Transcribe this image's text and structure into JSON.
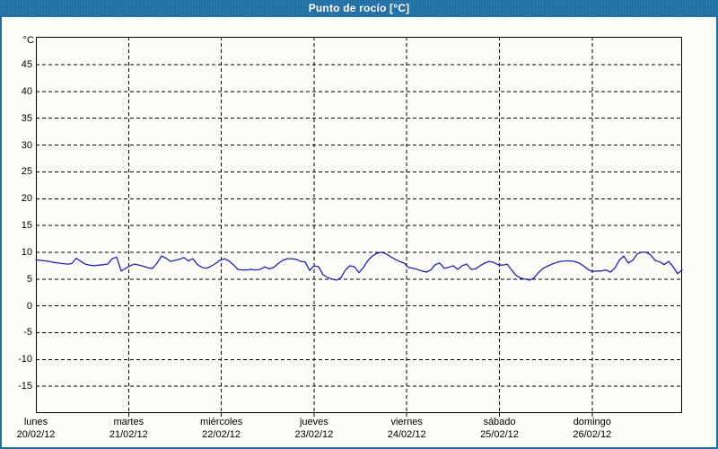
{
  "window": {
    "title": "Punto de rocío [°C]"
  },
  "colors": {
    "titlebar_bg": "#1e6da3",
    "titlebar_text": "#ffffff",
    "outer_border": "#1e6da3",
    "background": "#fcfdf8",
    "axis": "#000000",
    "gridline": "#000000",
    "line": "#2222b2"
  },
  "chart_data": {
    "type": "line",
    "title": "Punto de rocío [°C]",
    "ylabel": "°C",
    "ylim": [
      -20,
      50.2
    ],
    "yticks": [
      45,
      40,
      35,
      30,
      25,
      20,
      15,
      10,
      5,
      0,
      -5,
      -10,
      -15
    ],
    "grid": "dashed",
    "legend": "none",
    "x_span_days": 6.97,
    "x_days": [
      {
        "name": "lunes",
        "date": "20/02/12"
      },
      {
        "name": "martes",
        "date": "21/02/12"
      },
      {
        "name": "miércoles",
        "date": "22/02/12"
      },
      {
        "name": "jueves",
        "date": "23/02/12"
      },
      {
        "name": "viernes",
        "date": "24/02/12"
      },
      {
        "name": "sábado",
        "date": "25/02/12"
      },
      {
        "name": "domingo",
        "date": "26/02/12"
      }
    ],
    "series": [
      {
        "name": "Punto de rocío",
        "unit": "°C",
        "sampling": "uniform across x axis",
        "values": [
          8.6,
          8.5,
          8.4,
          8.3,
          8.1,
          8.0,
          7.9,
          7.8,
          7.9,
          8.9,
          8.3,
          7.8,
          7.6,
          7.5,
          7.6,
          7.7,
          7.8,
          8.8,
          9.1,
          6.5,
          7.0,
          7.5,
          7.8,
          7.6,
          7.4,
          7.1,
          7.0,
          8.0,
          9.3,
          8.9,
          8.3,
          8.5,
          8.7,
          9.0,
          8.4,
          8.8,
          7.7,
          7.2,
          7.0,
          7.4,
          7.9,
          8.5,
          8.8,
          8.4,
          7.7,
          6.8,
          6.7,
          6.7,
          6.8,
          6.7,
          6.8,
          7.3,
          6.9,
          7.2,
          7.9,
          8.5,
          8.8,
          8.8,
          8.7,
          8.3,
          8.2,
          6.6,
          7.5,
          7.3,
          5.8,
          5.3,
          5.0,
          4.8,
          5.3,
          6.7,
          7.5,
          7.3,
          6.2,
          7.2,
          8.5,
          9.3,
          9.8,
          10.0,
          9.7,
          9.2,
          8.7,
          8.3,
          8.0,
          7.2,
          7.0,
          6.8,
          6.5,
          6.3,
          6.7,
          7.7,
          8.0,
          7.0,
          7.2,
          7.5,
          6.8,
          7.5,
          7.8,
          6.8,
          6.9,
          7.5,
          8.0,
          8.3,
          8.1,
          7.7,
          7.6,
          7.8,
          6.7,
          5.7,
          5.2,
          5.0,
          4.8,
          5.2,
          6.2,
          7.0,
          7.4,
          7.8,
          8.1,
          8.3,
          8.4,
          8.4,
          8.3,
          8.0,
          7.5,
          6.8,
          6.4,
          6.5,
          6.5,
          6.7,
          6.3,
          7.0,
          8.5,
          9.3,
          8.0,
          8.5,
          9.7,
          10.0,
          10.0,
          9.5,
          8.5,
          8.2,
          7.7,
          8.3,
          7.3,
          6.0,
          6.7
        ]
      }
    ]
  }
}
